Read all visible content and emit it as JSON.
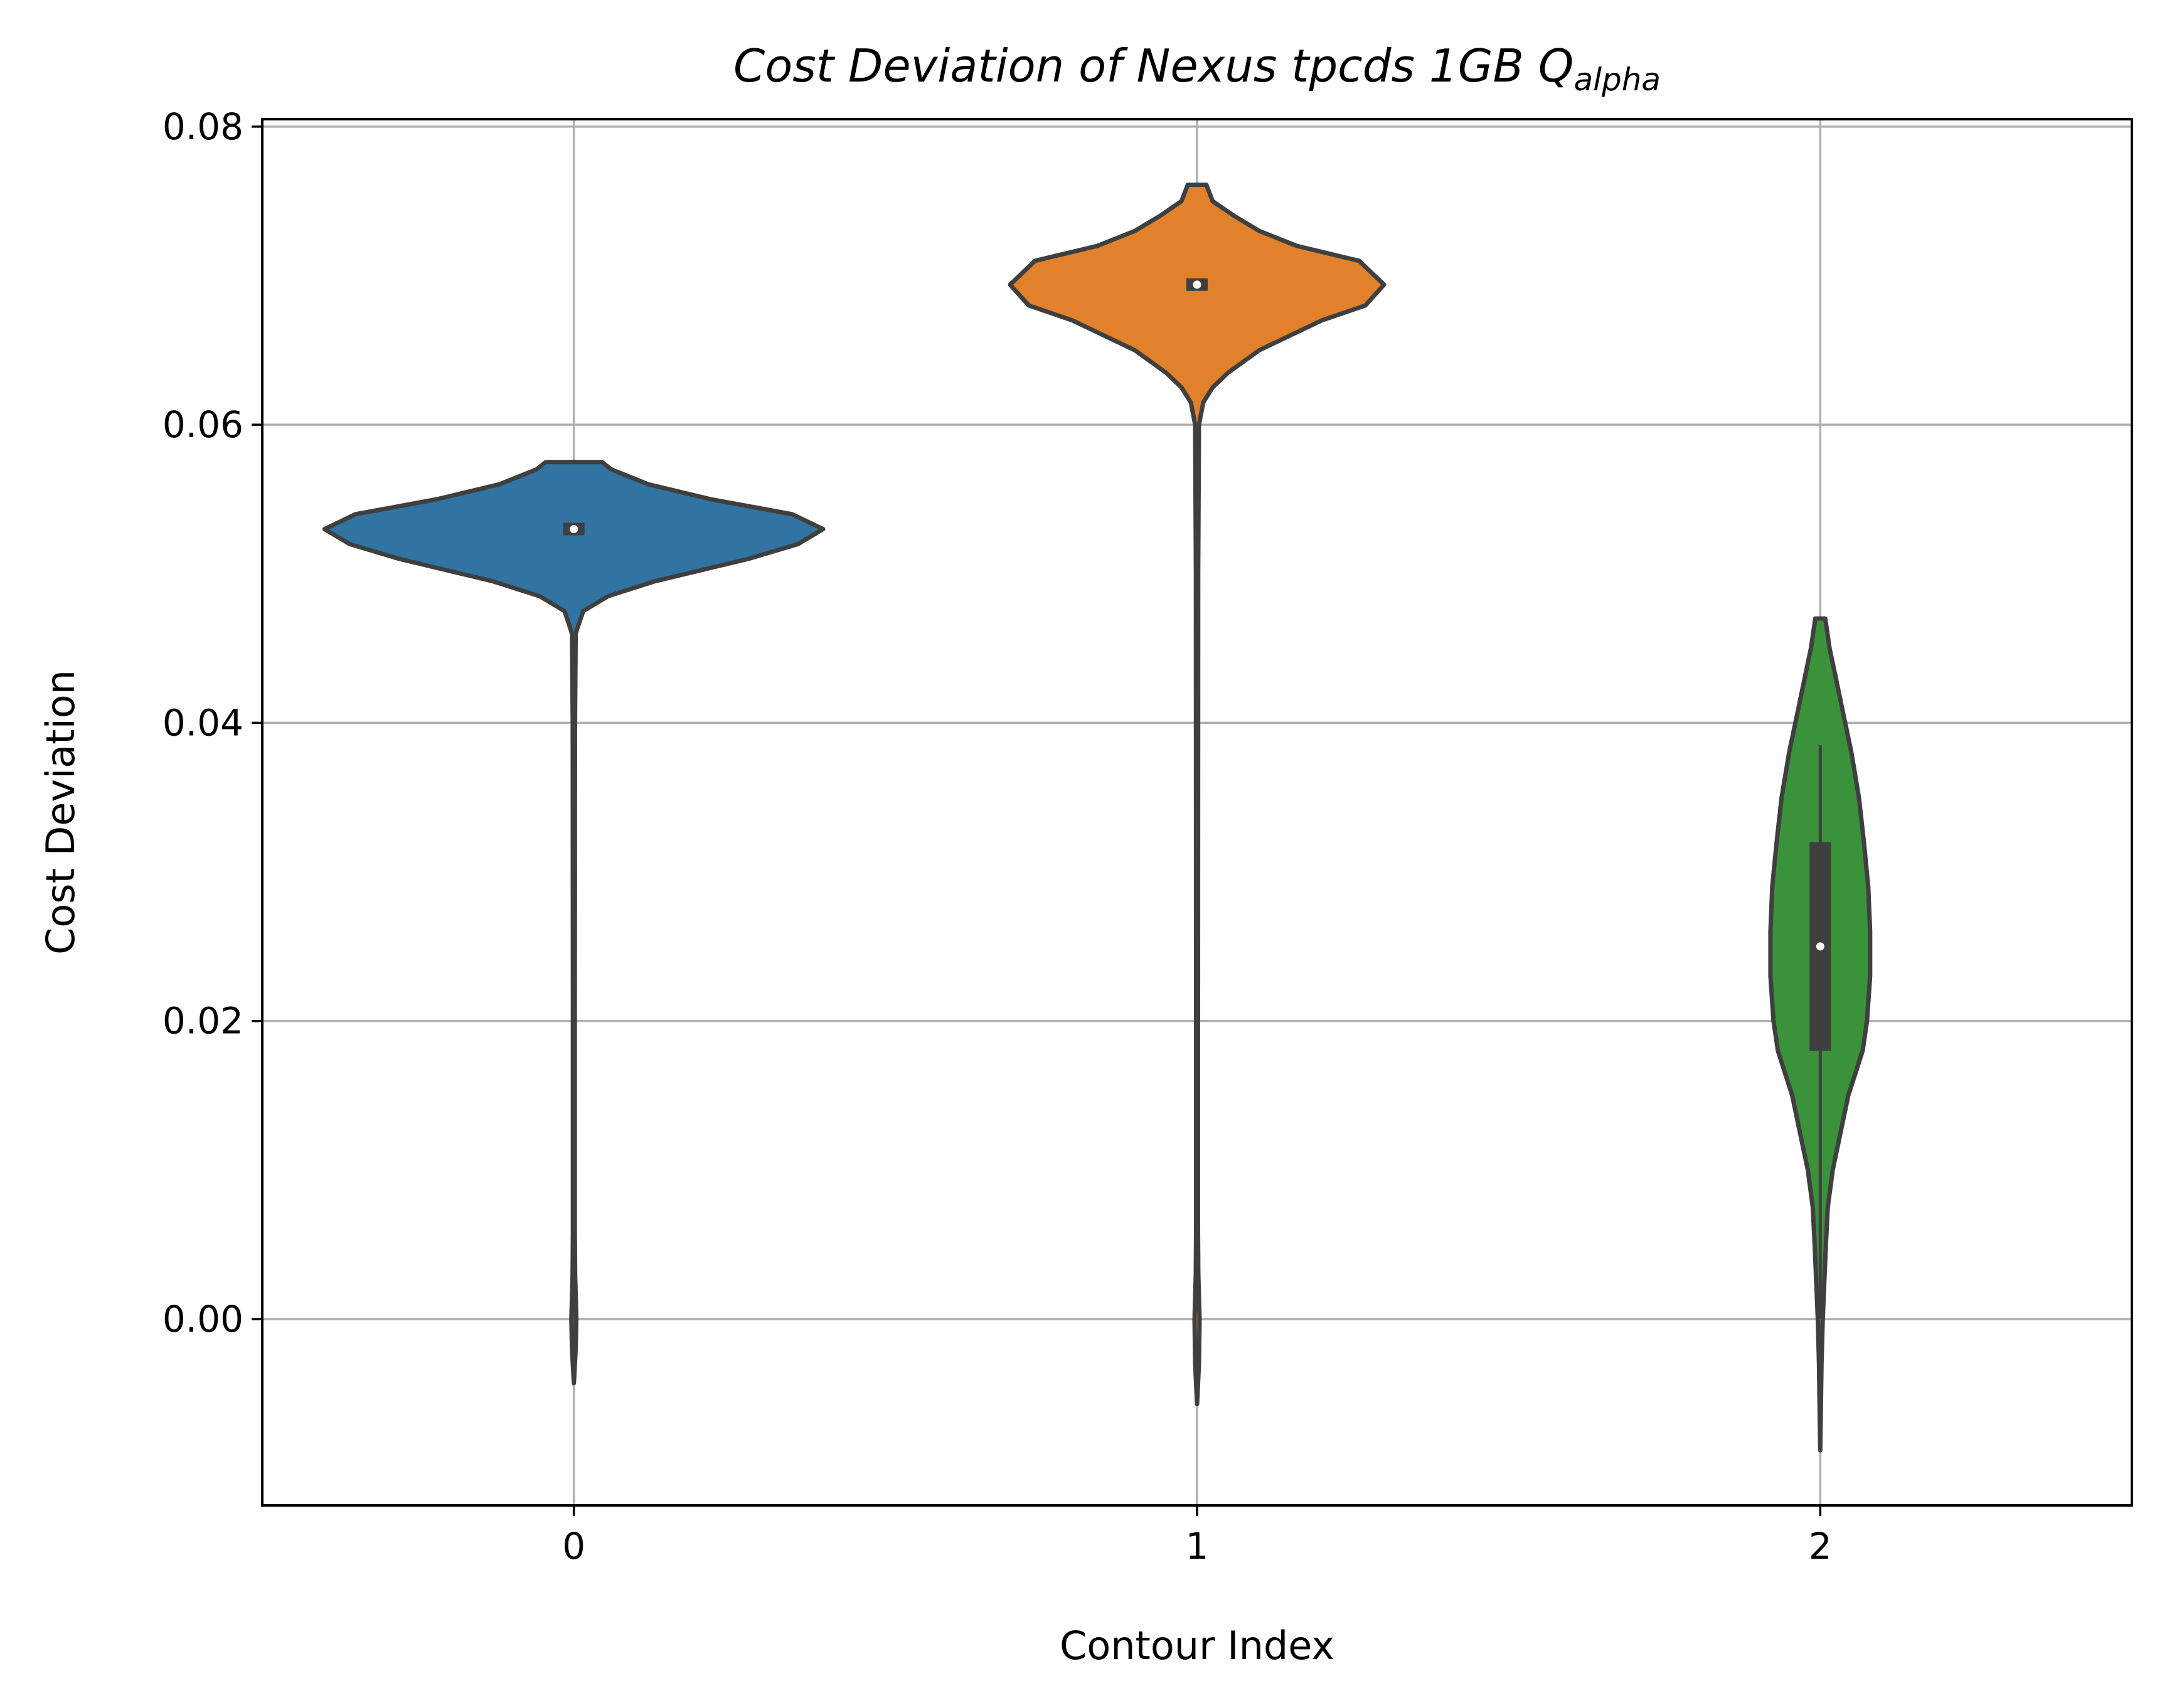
{
  "chart_data": {
    "type": "violin",
    "title_main": "Cost Deviation of Nexus tpcds  1GB  Q",
    "title_subscript": "alpha",
    "xlabel": "Contour Index",
    "ylabel": "Cost Deviation",
    "ylim": [
      -0.0125,
      0.0805
    ],
    "yticks": [
      0.0,
      0.02,
      0.04,
      0.06,
      0.08
    ],
    "ytick_labels": [
      "0.00",
      "0.02",
      "0.04",
      "0.06",
      "0.08"
    ],
    "xlim": [
      -0.5,
      2.5
    ],
    "grid": true,
    "categories": [
      "0",
      "1",
      "2"
    ],
    "violins": [
      {
        "category": "0",
        "color": "#3274a1",
        "median": 0.053,
        "q1": 0.0527,
        "q3": 0.0533,
        "whisker_low": 0.0527,
        "whisker_high": 0.0533,
        "min": -0.0043,
        "max": 0.0575,
        "profile": [
          [
            -0.0043,
            0.0
          ],
          [
            -0.002,
            0.003
          ],
          [
            0.0,
            0.004
          ],
          [
            0.003,
            0.002
          ],
          [
            0.006,
            0.0015
          ],
          [
            0.02,
            0.0015
          ],
          [
            0.04,
            0.0018
          ],
          [
            0.046,
            0.003
          ],
          [
            0.0475,
            0.015
          ],
          [
            0.0485,
            0.055
          ],
          [
            0.0495,
            0.13
          ],
          [
            0.051,
            0.28
          ],
          [
            0.052,
            0.36
          ],
          [
            0.053,
            0.4
          ],
          [
            0.054,
            0.35
          ],
          [
            0.055,
            0.22
          ],
          [
            0.056,
            0.12
          ],
          [
            0.057,
            0.06
          ],
          [
            0.0575,
            0.045
          ]
        ]
      },
      {
        "category": "1",
        "color": "#e1812c",
        "median": 0.0694,
        "q1": 0.0691,
        "q3": 0.0697,
        "whisker_low": 0.0691,
        "whisker_high": 0.0697,
        "min": -0.0057,
        "max": 0.0761,
        "profile": [
          [
            -0.0057,
            0.0
          ],
          [
            -0.003,
            0.003
          ],
          [
            0.0,
            0.004
          ],
          [
            0.003,
            0.002
          ],
          [
            0.006,
            0.0015
          ],
          [
            0.02,
            0.0015
          ],
          [
            0.05,
            0.0018
          ],
          [
            0.06,
            0.003
          ],
          [
            0.0615,
            0.01
          ],
          [
            0.0625,
            0.025
          ],
          [
            0.0635,
            0.05
          ],
          [
            0.065,
            0.1
          ],
          [
            0.067,
            0.2
          ],
          [
            0.068,
            0.27
          ],
          [
            0.0694,
            0.3
          ],
          [
            0.071,
            0.26
          ],
          [
            0.072,
            0.16
          ],
          [
            0.073,
            0.1
          ],
          [
            0.074,
            0.06
          ],
          [
            0.075,
            0.025
          ],
          [
            0.0761,
            0.015
          ]
        ]
      },
      {
        "category": "2",
        "color": "#3a923a",
        "median": 0.025,
        "q1": 0.018,
        "q3": 0.032,
        "whisker_low": 0.0,
        "whisker_high": 0.0385,
        "min": -0.0088,
        "max": 0.047,
        "profile": [
          [
            -0.0088,
            0.0
          ],
          [
            -0.006,
            0.001
          ],
          [
            -0.003,
            0.002
          ],
          [
            0.0,
            0.004
          ],
          [
            0.002,
            0.006
          ],
          [
            0.005,
            0.009
          ],
          [
            0.0075,
            0.012
          ],
          [
            0.01,
            0.02
          ],
          [
            0.012,
            0.03
          ],
          [
            0.015,
            0.045
          ],
          [
            0.018,
            0.068
          ],
          [
            0.02,
            0.075
          ],
          [
            0.023,
            0.08
          ],
          [
            0.026,
            0.08
          ],
          [
            0.029,
            0.077
          ],
          [
            0.032,
            0.07
          ],
          [
            0.035,
            0.062
          ],
          [
            0.038,
            0.05
          ],
          [
            0.041,
            0.035
          ],
          [
            0.043,
            0.025
          ],
          [
            0.045,
            0.015
          ],
          [
            0.047,
            0.008
          ]
        ]
      }
    ]
  }
}
